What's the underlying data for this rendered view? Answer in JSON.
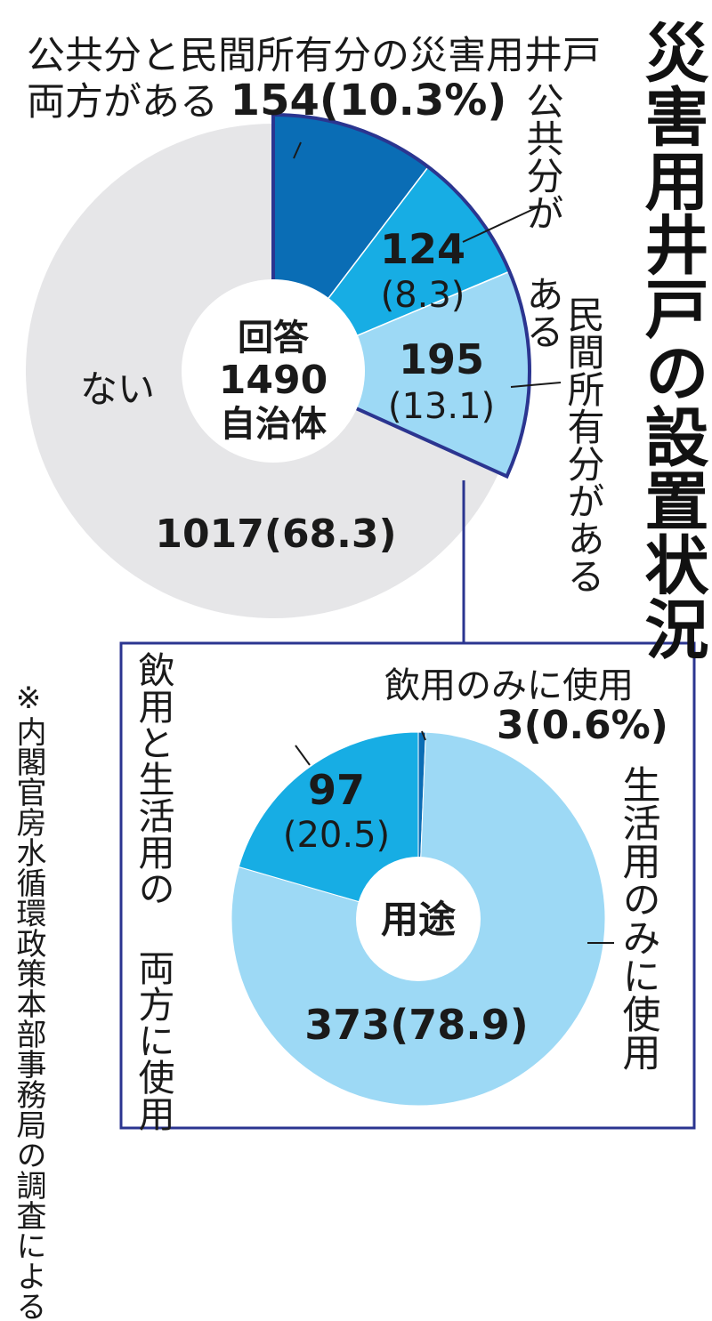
{
  "title": "災害用井戸の設置状況",
  "note": "※内閣官房水循環政策本部事務局の調査による",
  "colors": {
    "none": "#e6e6e8",
    "both": "#0a6db5",
    "public": "#17ade4",
    "private": "#9dd9f5",
    "outline": "#2b3590",
    "drink_life": "#17ade4",
    "life_only": "#9dd9f5",
    "drink_only": "#0a6db5"
  },
  "labels": {
    "both_line1": "公共分と民間所有分の災害用井戸",
    "both_line2": "両方がある",
    "both_value": "154(10.3%)",
    "public_label": "公共分が ある",
    "private_label": "民間所有分がある",
    "drink_life_label": "飲用と生活用の 両方に使用",
    "life_only_label": "生活用のみに使用",
    "drink_only_label": "飲用のみに使用",
    "drink_only_value": "3(0.6%)"
  },
  "chart_data": [
    {
      "type": "pie",
      "center_label": [
        "回答",
        "1490",
        "自治体"
      ],
      "slices": [
        {
          "key": "both",
          "value": 154,
          "percent": 10.3,
          "label": "公共分と民間所有分の災害用井戸両方がある",
          "value_label": "154(10.3%)"
        },
        {
          "key": "public",
          "value": 124,
          "percent": 8.3,
          "label": "公共分がある",
          "value_label": "124",
          "percent_label": "(8.3)"
        },
        {
          "key": "private",
          "value": 195,
          "percent": 13.1,
          "label": "民間所有分がある",
          "value_label": "195",
          "percent_label": "(13.1)"
        },
        {
          "key": "none",
          "value": 1017,
          "percent": 68.3,
          "label": "ない",
          "value_label": "1017(68.3)"
        }
      ]
    },
    {
      "type": "pie",
      "center_label": [
        "用途"
      ],
      "slices": [
        {
          "key": "drink_only",
          "value": 3,
          "percent": 0.6,
          "label": "飲用のみに使用",
          "value_label": "3(0.6%)"
        },
        {
          "key": "life_only",
          "value": 373,
          "percent": 78.9,
          "label": "生活用のみに使用",
          "value_label": "373(78.9)"
        },
        {
          "key": "drink_life",
          "value": 97,
          "percent": 20.5,
          "label": "飲用と生活用の両方に使用",
          "value_label": "97",
          "percent_label": "(20.5)"
        }
      ]
    }
  ]
}
